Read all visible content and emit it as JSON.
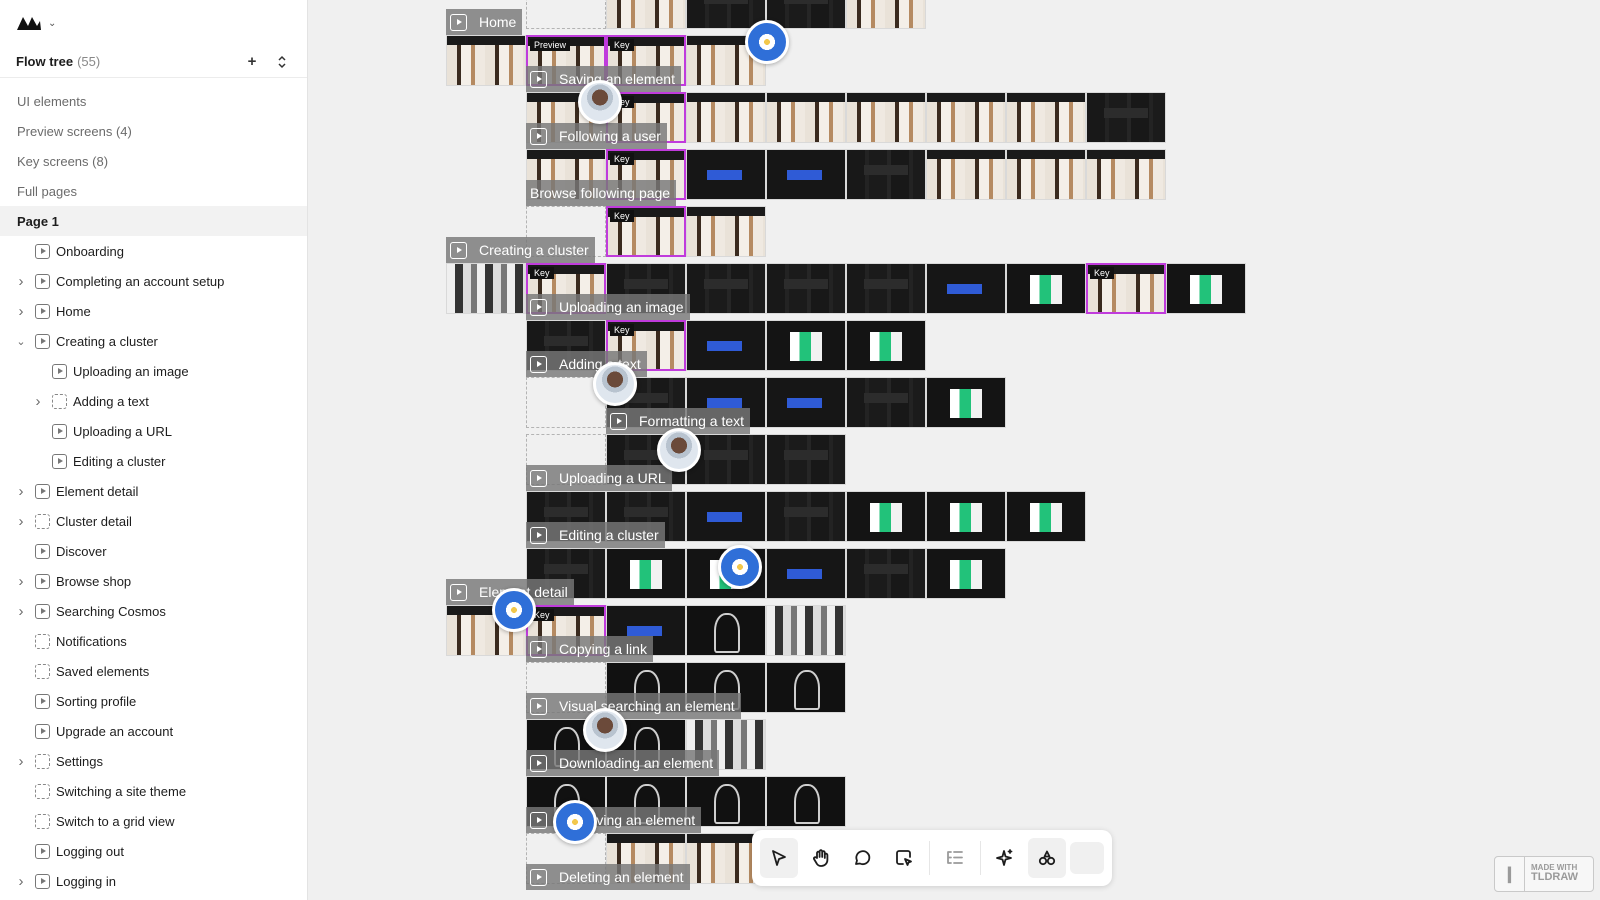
{
  "sidebar": {
    "tree_title": "Flow tree",
    "tree_count": "(55)",
    "groups": [
      {
        "label": "UI elements"
      },
      {
        "label": "Preview screens (4)"
      },
      {
        "label": "Key screens (8)"
      },
      {
        "label": "Full pages"
      }
    ],
    "page_label": "Page 1",
    "items": [
      {
        "label": "Onboarding",
        "depth": 0,
        "chevron": "",
        "icon": "flow"
      },
      {
        "label": "Completing an account setup",
        "depth": 0,
        "chevron": "right",
        "icon": "flow"
      },
      {
        "label": "Home",
        "depth": 0,
        "chevron": "right",
        "icon": "flow"
      },
      {
        "label": "Creating a cluster",
        "depth": 0,
        "chevron": "down",
        "icon": "flow"
      },
      {
        "label": "Uploading an image",
        "depth": 1,
        "chevron": "",
        "icon": "flow"
      },
      {
        "label": "Adding a text",
        "depth": 1,
        "chevron": "right",
        "icon": "dashed"
      },
      {
        "label": "Uploading a URL",
        "depth": 1,
        "chevron": "",
        "icon": "flow"
      },
      {
        "label": "Editing a cluster",
        "depth": 1,
        "chevron": "",
        "icon": "flow"
      },
      {
        "label": "Element detail",
        "depth": 0,
        "chevron": "right",
        "icon": "flow"
      },
      {
        "label": "Cluster detail",
        "depth": 0,
        "chevron": "right",
        "icon": "dashed"
      },
      {
        "label": "Discover",
        "depth": 0,
        "chevron": "",
        "icon": "flow"
      },
      {
        "label": "Browse shop",
        "depth": 0,
        "chevron": "right",
        "icon": "flow"
      },
      {
        "label": "Searching Cosmos",
        "depth": 0,
        "chevron": "right",
        "icon": "flow"
      },
      {
        "label": "Notifications",
        "depth": 0,
        "chevron": "",
        "icon": "dashed"
      },
      {
        "label": "Saved elements",
        "depth": 0,
        "chevron": "",
        "icon": "dashed"
      },
      {
        "label": "Sorting profile",
        "depth": 0,
        "chevron": "",
        "icon": "flow"
      },
      {
        "label": "Upgrade an account",
        "depth": 0,
        "chevron": "",
        "icon": "flow"
      },
      {
        "label": "Settings",
        "depth": 0,
        "chevron": "right",
        "icon": "dashed"
      },
      {
        "label": "Switching a site theme",
        "depth": 0,
        "chevron": "",
        "icon": "dashed"
      },
      {
        "label": "Switch to a grid view",
        "depth": 0,
        "chevron": "",
        "icon": "dashed"
      },
      {
        "label": "Logging out",
        "depth": 0,
        "chevron": "",
        "icon": "flow"
      },
      {
        "label": "Logging in",
        "depth": 0,
        "chevron": "right",
        "icon": "flow"
      }
    ]
  },
  "canvas": {
    "tag_key": "Key",
    "tag_preview": "Preview",
    "flows": [
      {
        "label": "Home",
        "thumbs": [
          "ghost",
          "light",
          "dark",
          "dark",
          "light"
        ]
      },
      {
        "label": "Saving an element",
        "thumbs": [
          "light",
          "preview",
          "key",
          "light"
        ]
      },
      {
        "label": "Following a user",
        "thumbs": [
          "light",
          "key",
          "light",
          "light",
          "light",
          "light",
          "light",
          "dark"
        ]
      },
      {
        "label": "Browse following page",
        "thumbs": [
          "light",
          "key",
          "blue",
          "blue",
          "dark",
          "light",
          "light",
          "light"
        ]
      },
      {
        "label": "Creating a cluster",
        "thumbs": [
          "ghost",
          "key",
          "light"
        ]
      },
      {
        "label": "Uploading an image",
        "thumbs": [
          "grid",
          "key",
          "dark",
          "dark",
          "dark",
          "dark",
          "blue",
          "green",
          "key",
          "green"
        ]
      },
      {
        "label": "Adding a text",
        "thumbs": [
          "dark",
          "key",
          "blue",
          "green",
          "green"
        ]
      },
      {
        "label": "Formatting a text",
        "thumbs": [
          "ghost",
          "dark",
          "blue",
          "blue",
          "dark",
          "green"
        ]
      },
      {
        "label": "Uploading a URL",
        "thumbs": [
          "ghost",
          "dark",
          "dark",
          "dark"
        ]
      },
      {
        "label": "Editing a cluster",
        "thumbs": [
          "dark",
          "dark",
          "blue",
          "dark",
          "green",
          "green",
          "green"
        ]
      },
      {
        "label": "Element detail",
        "thumbs": [
          "dark",
          "green",
          "green",
          "blue",
          "dark",
          "green"
        ]
      },
      {
        "label": "Copying a link",
        "thumbs": [
          "light",
          "key",
          "blue",
          "vase",
          "grid"
        ]
      },
      {
        "label": "Visual searching an element",
        "thumbs": [
          "ghost",
          "vase",
          "vase",
          "vase"
        ]
      },
      {
        "label": "Downloading an element",
        "thumbs": [
          "vase",
          "vase",
          "grid"
        ]
      },
      {
        "label": "Removing an element",
        "thumbs": [
          "vase",
          "vase",
          "vase",
          "vase"
        ]
      },
      {
        "label": "Deleting an element",
        "thumbs": [
          "ghost",
          "light",
          "light"
        ]
      }
    ]
  },
  "toolbar": {
    "tools": [
      "select-icon",
      "hand-icon",
      "comment-icon",
      "frame-select-icon",
      "outline-icon",
      "ai-sparkle-icon",
      "shapes-icon"
    ]
  },
  "badge": {
    "line1": "MADE WITH",
    "line2": "TLDRAW"
  }
}
